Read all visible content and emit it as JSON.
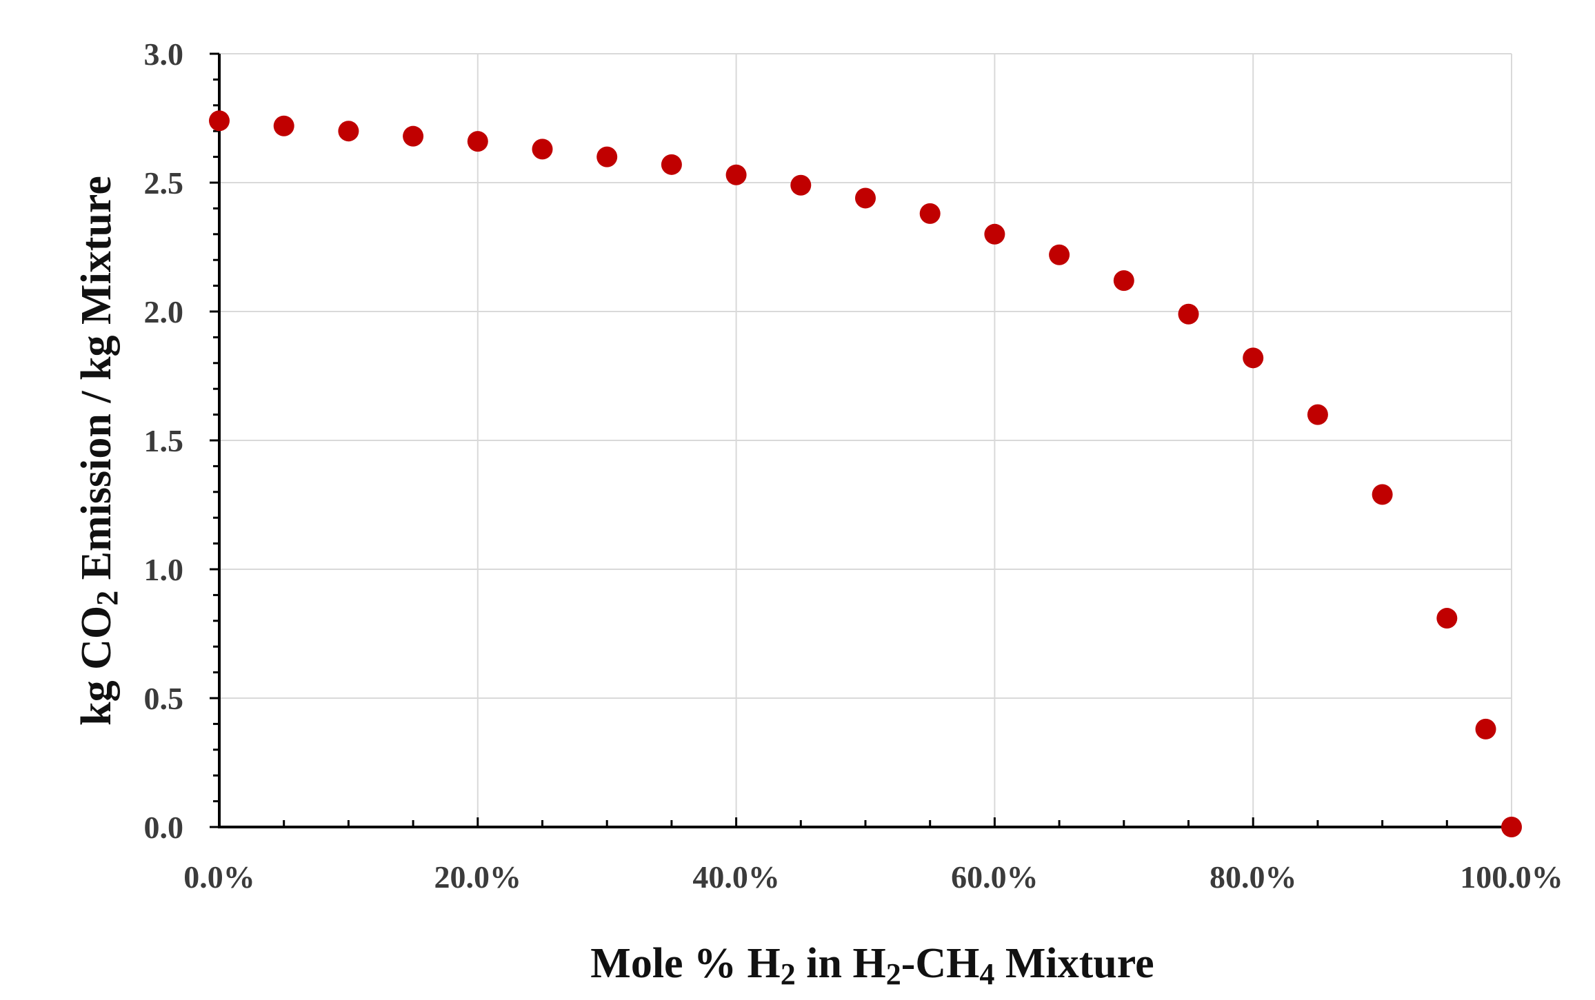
{
  "chart_data": {
    "type": "scatter",
    "title": "",
    "xlabel": {
      "parts": [
        {
          "text": "Mole % H"
        },
        {
          "text": "2",
          "sub": true
        },
        {
          "text": " in H"
        },
        {
          "text": "2",
          "sub": true
        },
        {
          "text": "-CH"
        },
        {
          "text": "4",
          "sub": true
        },
        {
          "text": " Mixture"
        }
      ]
    },
    "ylabel": {
      "parts": [
        {
          "text": "kg CO"
        },
        {
          "text": "2",
          "sub": true
        },
        {
          "text": " Emission / kg  Mixture"
        }
      ]
    },
    "xlim": [
      0,
      1
    ],
    "ylim": [
      0,
      3
    ],
    "x_ticks": [
      0,
      0.2,
      0.4,
      0.6,
      0.8,
      1.0
    ],
    "x_tick_labels": [
      "0.0%",
      "20.0%",
      "40.0%",
      "60.0%",
      "80.0%",
      "100.0%"
    ],
    "y_ticks": [
      0,
      0.5,
      1.0,
      1.5,
      2.0,
      2.5,
      3.0
    ],
    "y_tick_labels": [
      "0.0",
      "0.5",
      "1.0",
      "1.5",
      "2.0",
      "2.5",
      "3.0"
    ],
    "grid": true,
    "marker_color": "#c00000",
    "series": [
      {
        "x": [
          0.0,
          0.05,
          0.1,
          0.15,
          0.2,
          0.25,
          0.3,
          0.35,
          0.4,
          0.45,
          0.5,
          0.55,
          0.6,
          0.65,
          0.7,
          0.75,
          0.8,
          0.85,
          0.9,
          0.95,
          0.98,
          1.0
        ],
        "y": [
          2.74,
          2.72,
          2.7,
          2.68,
          2.66,
          2.63,
          2.6,
          2.57,
          2.53,
          2.49,
          2.44,
          2.38,
          2.3,
          2.22,
          2.12,
          1.99,
          1.82,
          1.6,
          1.29,
          0.81,
          0.38,
          0.0
        ]
      }
    ]
  }
}
